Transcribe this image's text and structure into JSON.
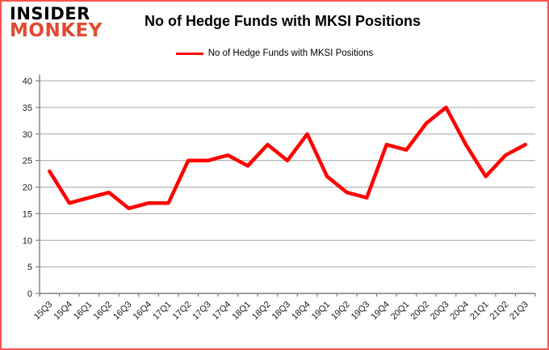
{
  "logo": {
    "line1": "INSIDER",
    "line2": "MONKEY"
  },
  "header": {
    "title": "No of Hedge Funds with MKSI Positions"
  },
  "legend": {
    "label": "No of Hedge Funds with MKSI Positions",
    "swatch_color": "#ff0000"
  },
  "chart_data": {
    "type": "line",
    "title": "No of Hedge Funds with MKSI Positions",
    "categories": [
      "15Q3",
      "15Q4",
      "16Q1",
      "16Q2",
      "16Q3",
      "16Q4",
      "17Q1",
      "17Q2",
      "17Q3",
      "17Q4",
      "18Q1",
      "18Q2",
      "18Q3",
      "18Q4",
      "19Q1",
      "19Q2",
      "19Q3",
      "19Q4",
      "20Q1",
      "20Q2",
      "20Q3",
      "20Q4",
      "21Q1",
      "21Q2",
      "21Q3"
    ],
    "series": [
      {
        "name": "No of Hedge Funds with MKSI Positions",
        "color": "#ff0000",
        "values": [
          23,
          17,
          18,
          19,
          16,
          17,
          17,
          25,
          25,
          26,
          24,
          28,
          25,
          30,
          22,
          19,
          18,
          28,
          27,
          32,
          35,
          28,
          22,
          26,
          28
        ]
      }
    ],
    "xlabel": "",
    "ylabel": "",
    "ylim": [
      0,
      40
    ],
    "ytick_step": 5,
    "grid": true,
    "legend_position": "top",
    "colors": {
      "gridline": "#a6a6a6",
      "axis": "#7f7f7f",
      "tick_label": "#1a1a1a"
    }
  }
}
